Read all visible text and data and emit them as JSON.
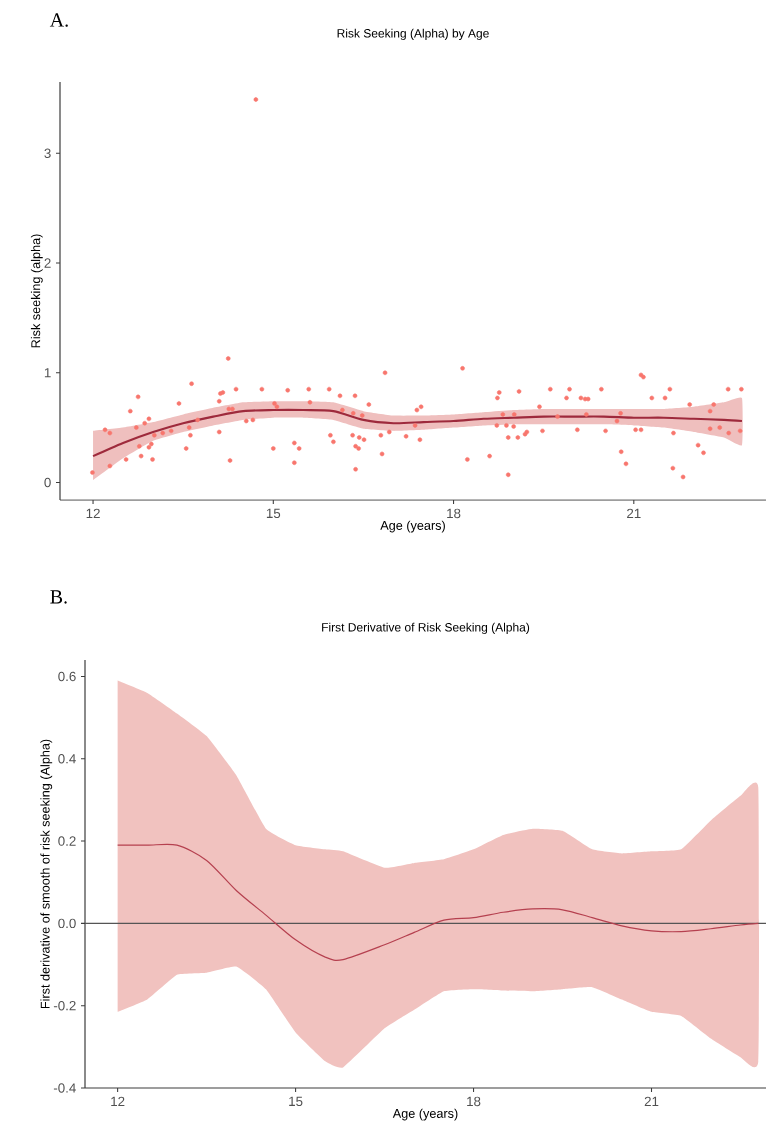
{
  "chart_data": [
    {
      "type": "scatter",
      "title": "Risk Seeking (Alpha) by Age",
      "xlabel": "Age (years)",
      "ylabel": "Risk seeking (alpha)",
      "annotations": [
        "A."
      ],
      "xlim": [
        11.45,
        23.2
      ],
      "ylim": [
        -0.16,
        3.65
      ],
      "xticks": [
        12,
        15,
        18,
        21
      ],
      "yticks": [
        0,
        1,
        2,
        3
      ],
      "series": [
        {
          "type": "scatter",
          "color": "#f8766d",
          "x": [
            11.99,
            12.2,
            12.28,
            12.28,
            12.55,
            12.62,
            12.75,
            12.72,
            12.77,
            12.8,
            12.86,
            12.93,
            12.93,
            12.97,
            12.99,
            13.02,
            13.16,
            13.3,
            13.43,
            13.55,
            13.6,
            13.62,
            13.64,
            13.74,
            14.1,
            14.1,
            14.12,
            14.16,
            14.25,
            14.26,
            14.32,
            14.28,
            14.38,
            14.55,
            14.66,
            14.71,
            14.81,
            15.0,
            15.02,
            15.06,
            15.24,
            15.35,
            15.43,
            15.35,
            15.59,
            15.61,
            15.93,
            15.95,
            16.0,
            16.11,
            16.15,
            16.32,
            16.36,
            16.33,
            16.37,
            16.42,
            16.37,
            16.43,
            16.51,
            16.48,
            16.59,
            16.79,
            16.81,
            16.86,
            16.93,
            17.21,
            17.39,
            17.46,
            17.36,
            17.44,
            18.15,
            18.23,
            18.6,
            18.72,
            18.73,
            18.76,
            18.82,
            18.88,
            18.91,
            18.91,
            19.01,
            19.0,
            19.07,
            19.09,
            19.19,
            19.22,
            19.43,
            19.48,
            19.61,
            19.73,
            19.88,
            19.93,
            20.06,
            20.12,
            20.19,
            20.24,
            20.21,
            20.46,
            20.53,
            20.72,
            20.78,
            20.79,
            20.87,
            21.03,
            21.12,
            21.12,
            21.16,
            21.3,
            21.52,
            21.6,
            21.66,
            21.65,
            21.82,
            21.93,
            22.07,
            22.16,
            22.27,
            22.33,
            22.27,
            22.43,
            22.57,
            22.58,
            22.79,
            22.77
          ],
          "values": [
            0.09,
            0.48,
            0.45,
            0.15,
            0.21,
            0.65,
            0.78,
            0.5,
            0.33,
            0.24,
            0.54,
            0.58,
            0.32,
            0.35,
            0.21,
            0.43,
            0.45,
            0.47,
            0.72,
            0.31,
            0.5,
            0.43,
            0.9,
            0.57,
            0.46,
            0.74,
            0.81,
            0.82,
            1.13,
            0.67,
            0.67,
            0.2,
            0.85,
            0.56,
            0.57,
            3.49,
            0.85,
            0.31,
            0.72,
            0.69,
            0.84,
            0.36,
            0.31,
            0.18,
            0.85,
            0.73,
            0.85,
            0.43,
            0.37,
            0.79,
            0.66,
            0.43,
            0.79,
            0.63,
            0.33,
            0.31,
            0.12,
            0.41,
            0.39,
            0.61,
            0.71,
            0.43,
            0.26,
            1.0,
            0.46,
            0.42,
            0.66,
            0.69,
            0.52,
            0.39,
            1.04,
            0.21,
            0.24,
            0.52,
            0.77,
            0.82,
            0.62,
            0.52,
            0.41,
            0.07,
            0.62,
            0.51,
            0.41,
            0.83,
            0.44,
            0.46,
            0.69,
            0.47,
            0.85,
            0.6,
            0.77,
            0.85,
            0.48,
            0.77,
            0.76,
            0.76,
            0.62,
            0.85,
            0.47,
            0.56,
            0.63,
            0.28,
            0.17,
            0.48,
            0.48,
            0.98,
            0.96,
            0.77,
            0.77,
            0.85,
            0.45,
            0.13,
            0.05,
            0.71,
            0.34,
            0.27,
            0.65,
            0.71,
            0.49,
            0.5,
            0.85,
            0.45,
            0.85,
            0.47
          ]
        },
        {
          "type": "line",
          "color": "#9e2a3c",
          "x": [
            12,
            12.5,
            13,
            13.5,
            14,
            14.5,
            15,
            15.5,
            16,
            16.5,
            17,
            17.5,
            18,
            18.5,
            19,
            19.5,
            20,
            20.5,
            21,
            21.5,
            22,
            22.5,
            22.8
          ],
          "values": [
            0.24,
            0.36,
            0.46,
            0.54,
            0.6,
            0.65,
            0.66,
            0.66,
            0.65,
            0.57,
            0.54,
            0.55,
            0.56,
            0.58,
            0.59,
            0.6,
            0.6,
            0.6,
            0.59,
            0.59,
            0.58,
            0.57,
            0.56
          ],
          "upper": [
            0.47,
            0.5,
            0.55,
            0.62,
            0.68,
            0.73,
            0.74,
            0.74,
            0.73,
            0.65,
            0.61,
            0.61,
            0.62,
            0.64,
            0.66,
            0.67,
            0.67,
            0.67,
            0.67,
            0.67,
            0.69,
            0.73,
            0.77
          ],
          "lower": [
            0.02,
            0.22,
            0.38,
            0.46,
            0.52,
            0.57,
            0.59,
            0.59,
            0.57,
            0.49,
            0.47,
            0.48,
            0.5,
            0.52,
            0.53,
            0.53,
            0.53,
            0.53,
            0.52,
            0.5,
            0.46,
            0.41,
            0.34
          ]
        }
      ]
    },
    {
      "type": "line",
      "title": "First Derivative of Risk Seeking (Alpha)",
      "xlabel": "Age (years)",
      "ylabel": "First derivative of smooth of risk seeking (Alpha)",
      "annotations": [
        "B."
      ],
      "xlim": [
        11.45,
        22.93
      ],
      "ylim": [
        -0.4,
        0.64
      ],
      "xticks": [
        12,
        15,
        18,
        21
      ],
      "yticks": [
        -0.4,
        -0.2,
        {
          "value": 0,
          "label": "0.0"
        },
        0.2,
        0.4,
        0.6
      ],
      "ref_lines": [
        {
          "axis": "y",
          "value": 0,
          "color": "#555555"
        }
      ],
      "series": [
        {
          "color": "#b5404f",
          "x": [
            12,
            12.5,
            13,
            13.5,
            14,
            14.5,
            15,
            15.5,
            15.8,
            16.5,
            17,
            17.5,
            18,
            18.5,
            19,
            19.5,
            20,
            20.5,
            21,
            21.5,
            22,
            22.5,
            22.8
          ],
          "values": [
            0.19,
            0.19,
            0.19,
            0.153,
            0.08,
            0.02,
            -0.04,
            -0.082,
            -0.088,
            -0.052,
            -0.022,
            0.008,
            0.014,
            0.027,
            0.035,
            0.033,
            0.014,
            -0.006,
            -0.018,
            -0.02,
            -0.013,
            -0.004,
            0
          ],
          "upper": [
            0.59,
            0.56,
            0.51,
            0.455,
            0.36,
            0.23,
            0.19,
            0.18,
            0.175,
            0.135,
            0.147,
            0.156,
            0.18,
            0.215,
            0.23,
            0.225,
            0.18,
            0.17,
            0.175,
            0.18,
            0.25,
            0.31,
            0.33
          ],
          "lower": [
            -0.215,
            -0.185,
            -0.125,
            -0.12,
            -0.105,
            -0.16,
            -0.265,
            -0.335,
            -0.35,
            -0.255,
            -0.21,
            -0.165,
            -0.16,
            -0.163,
            -0.165,
            -0.16,
            -0.155,
            -0.185,
            -0.215,
            -0.225,
            -0.28,
            -0.325,
            -0.335
          ]
        }
      ]
    }
  ]
}
